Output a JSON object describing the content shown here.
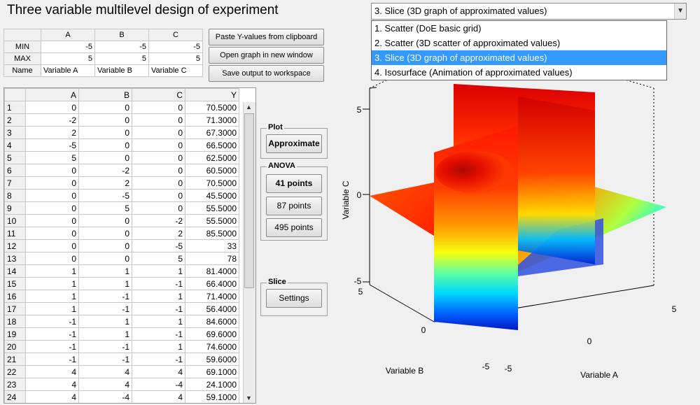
{
  "title": "Three variable multilevel design of experiment",
  "params": {
    "headers": [
      "A",
      "B",
      "C"
    ],
    "rows": [
      {
        "label": "MIN",
        "values": [
          "-5",
          "-5",
          "-5"
        ]
      },
      {
        "label": "MAX",
        "values": [
          "5",
          "5",
          "5"
        ]
      },
      {
        "label": "Name",
        "values": [
          "Variable A",
          "Variable B",
          "Variable C"
        ]
      }
    ]
  },
  "buttons": {
    "paste": "Paste Y-values from clipboard",
    "open_graph": "Open graph in new window",
    "save": "Save output to workspace",
    "approximate": "Approximate",
    "p41": "41 points",
    "p87": "87 points",
    "p495": "495 points",
    "settings": "Settings"
  },
  "panels": {
    "plot": "Plot",
    "anova": "ANOVA",
    "slice": "Slice"
  },
  "data_table": {
    "headers": [
      "A",
      "B",
      "C",
      "Y"
    ],
    "rows": [
      [
        "1",
        "0",
        "0",
        "0",
        "70.5000"
      ],
      [
        "2",
        "-2",
        "0",
        "0",
        "71.3000"
      ],
      [
        "3",
        "2",
        "0",
        "0",
        "67.3000"
      ],
      [
        "4",
        "-5",
        "0",
        "0",
        "66.5000"
      ],
      [
        "5",
        "5",
        "0",
        "0",
        "62.5000"
      ],
      [
        "6",
        "0",
        "-2",
        "0",
        "60.5000"
      ],
      [
        "7",
        "0",
        "2",
        "0",
        "70.5000"
      ],
      [
        "8",
        "0",
        "-5",
        "0",
        "45.5000"
      ],
      [
        "9",
        "0",
        "5",
        "0",
        "55.5000"
      ],
      [
        "10",
        "0",
        "0",
        "-2",
        "55.5000"
      ],
      [
        "11",
        "0",
        "0",
        "2",
        "85.5000"
      ],
      [
        "12",
        "0",
        "0",
        "-5",
        "33"
      ],
      [
        "13",
        "0",
        "0",
        "5",
        "78"
      ],
      [
        "14",
        "1",
        "1",
        "1",
        "81.4000"
      ],
      [
        "15",
        "1",
        "1",
        "-1",
        "66.4000"
      ],
      [
        "16",
        "1",
        "-1",
        "1",
        "71.4000"
      ],
      [
        "17",
        "1",
        "-1",
        "-1",
        "56.4000"
      ],
      [
        "18",
        "-1",
        "1",
        "1",
        "84.6000"
      ],
      [
        "19",
        "-1",
        "1",
        "-1",
        "69.6000"
      ],
      [
        "20",
        "-1",
        "-1",
        "1",
        "74.6000"
      ],
      [
        "21",
        "-1",
        "-1",
        "-1",
        "59.6000"
      ],
      [
        "22",
        "4",
        "4",
        "4",
        "69.1000"
      ],
      [
        "23",
        "4",
        "4",
        "-4",
        "24.1000"
      ],
      [
        "24",
        "4",
        "-4",
        "4",
        "59.1000"
      ]
    ]
  },
  "dropdown": {
    "selected": "3. Slice (3D graph of approximated values)",
    "options": [
      "1. Scatter (DoE basic grid)",
      "2. Scatter (3D scatter of approximated values)",
      "3. Slice (3D graph of approximated values)",
      "4. Isosurface (Animation of approximated values)"
    ]
  },
  "plot": {
    "xlabel": "Variable A",
    "ylabel": "Variable B",
    "zlabel": "Variable C",
    "z_ticks": [
      "5",
      "0",
      "-5"
    ],
    "b_ticks": [
      "5",
      "0",
      "-5"
    ],
    "a_ticks": [
      "5",
      "0",
      "-5"
    ]
  }
}
